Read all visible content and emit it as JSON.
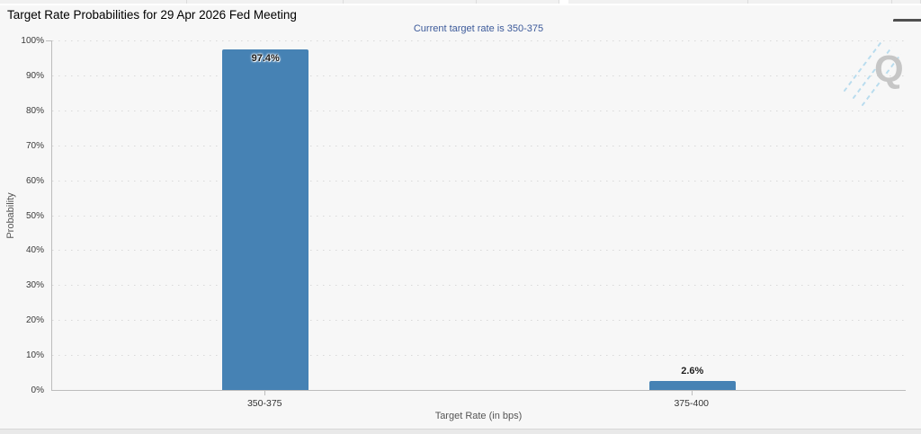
{
  "chart_data": {
    "type": "bar",
    "title": "Target Rate Probabilities for 29 Apr 2026 Fed Meeting",
    "subtitle": "Current target rate is 350-375",
    "categories": [
      "350-375",
      "375-400"
    ],
    "values": [
      97.4,
      2.6
    ],
    "data_labels": [
      "97.4%",
      "2.6%"
    ],
    "xlabel": "Target Rate (in bps)",
    "ylabel": "Probability",
    "ylim": [
      0,
      100
    ],
    "ytick_step": 10,
    "ytick_suffix": "%",
    "grid": "dotted-horizontal",
    "legend_position": "none",
    "bar_color": "#4682b4",
    "subtitle_color": "#3c5a9a"
  },
  "toolbar": {
    "menu_icon": "hamburger-menu-icon"
  },
  "watermark": {
    "letter": "Q"
  }
}
